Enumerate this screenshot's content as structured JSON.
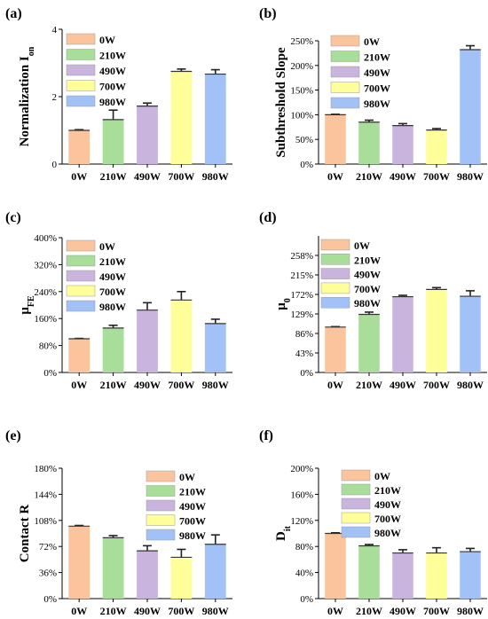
{
  "colors": {
    "0W": "#fbc49d",
    "210W": "#a9dd9a",
    "490W": "#c8b4dc",
    "700W": "#ffff99",
    "980W": "#a2c2f7"
  },
  "chart_data": [
    {
      "panel": "(a)",
      "type": "bar",
      "ylabel": "Normalization I",
      "ylabel_sub": "on",
      "categories": [
        "0W",
        "210W",
        "490W",
        "700W",
        "980W"
      ],
      "values": [
        1.0,
        1.32,
        1.72,
        2.75,
        2.67
      ],
      "errors": [
        0.02,
        0.28,
        0.09,
        0.07,
        0.13
      ],
      "ylim": [
        0,
        4
      ],
      "yticks": [
        0,
        2,
        4
      ],
      "ytick_labels": [
        "0",
        "2",
        "4"
      ],
      "legend": [
        "0W",
        "210W",
        "490W",
        "700W",
        "980W"
      ],
      "legend_placement": "top-left"
    },
    {
      "panel": "(b)",
      "type": "bar",
      "ylabel": "Subthreshold Slope",
      "ylabel_sub": "",
      "categories": [
        "0W",
        "210W",
        "490W",
        "700W",
        "980W"
      ],
      "values": [
        100,
        85,
        78,
        69,
        232
      ],
      "errors": [
        1,
        4,
        4,
        3,
        8
      ],
      "ylim": [
        0,
        250
      ],
      "yticks": [
        0,
        50,
        100,
        150,
        200,
        250
      ],
      "ytick_labels": [
        "0%",
        "50%",
        "100%",
        "150%",
        "200%",
        "250%"
      ],
      "legend": [
        "0W",
        "210W",
        "490W",
        "700W",
        "980W"
      ],
      "legend_placement": "top-left"
    },
    {
      "panel": "(c)",
      "type": "bar",
      "ylabel": "μ",
      "ylabel_sub": "FE",
      "categories": [
        "0W",
        "210W",
        "490W",
        "700W",
        "980W"
      ],
      "values": [
        100,
        132,
        185,
        215,
        145
      ],
      "errors": [
        1,
        8,
        22,
        25,
        13
      ],
      "ylim": [
        0,
        400
      ],
      "yticks": [
        0,
        80,
        160,
        240,
        320,
        400
      ],
      "ytick_labels": [
        "0%",
        "80%",
        "160%",
        "240%",
        "320%",
        "400%"
      ],
      "legend": [
        "0W",
        "210W",
        "490W",
        "700W",
        "980W"
      ],
      "legend_placement": "top-left"
    },
    {
      "panel": "(d)",
      "type": "bar",
      "ylabel": "μ",
      "ylabel_sub": "0",
      "categories": [
        "0W",
        "210W",
        "490W",
        "700W",
        "980W"
      ],
      "values": [
        100,
        128,
        167,
        183,
        168
      ],
      "errors": [
        1,
        5,
        3,
        4,
        12
      ],
      "ylim": [
        0,
        301
      ],
      "yticks": [
        0,
        43,
        86,
        129,
        172,
        215,
        258
      ],
      "ytick_labels": [
        "0%",
        "43%",
        "86%",
        "129%",
        "172%",
        "215%",
        "258%"
      ],
      "legend": [
        "0W",
        "210W",
        "490W",
        "700W",
        "980W"
      ],
      "legend_placement": "top-left"
    },
    {
      "panel": "(e)",
      "type": "bar",
      "ylabel": "Contact R",
      "ylabel_sub": "",
      "categories": [
        "0W",
        "210W",
        "490W",
        "700W",
        "980W"
      ],
      "values": [
        100,
        84,
        66,
        57,
        75
      ],
      "errors": [
        1,
        3,
        7,
        11,
        13
      ],
      "ylim": [
        0,
        180
      ],
      "yticks": [
        0,
        36,
        72,
        108,
        144,
        180
      ],
      "ytick_labels": [
        "0%",
        "36%",
        "72%",
        "108%",
        "144%",
        "180%"
      ],
      "legend": [
        "0W",
        "210W",
        "490W",
        "700W",
        "980W"
      ],
      "legend_placement": "top-right"
    },
    {
      "panel": "(f)",
      "type": "bar",
      "ylabel": "D",
      "ylabel_sub": "it",
      "categories": [
        "0W",
        "210W",
        "490W",
        "700W",
        "980W"
      ],
      "values": [
        100,
        81,
        70,
        70,
        72
      ],
      "errors": [
        1,
        2,
        5,
        8,
        5
      ],
      "ylim": [
        0,
        200
      ],
      "yticks": [
        0,
        40,
        80,
        120,
        160,
        200
      ],
      "ytick_labels": [
        "0%",
        "40%",
        "80%",
        "120%",
        "160%",
        "200%"
      ],
      "legend": [
        "0W",
        "210W",
        "490W",
        "700W",
        "980W"
      ],
      "legend_placement": "top-left"
    }
  ]
}
